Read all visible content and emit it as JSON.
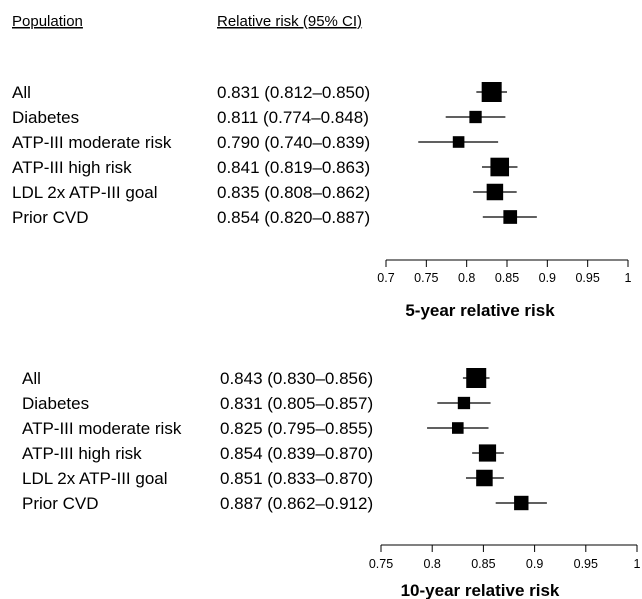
{
  "header": {
    "population": "Population",
    "relative_risk": "Relative risk (95% CI)"
  },
  "chart_data": [
    {
      "type": "forest",
      "xlabel": "5-year relative risk",
      "xlim": [
        0.7,
        1.0
      ],
      "ticks": [
        "0.7",
        "0.75",
        "0.8",
        "0.85",
        "0.9",
        "0.95",
        "1"
      ],
      "rows": [
        {
          "population": "All",
          "estimate": 0.831,
          "lower": 0.812,
          "upper": 0.85,
          "text": "0.831 (0.812–0.850)",
          "weight": 1.0
        },
        {
          "population": "Diabetes",
          "estimate": 0.811,
          "lower": 0.774,
          "upper": 0.848,
          "text": "0.811 (0.774–0.848)",
          "weight": 0.45
        },
        {
          "population": "ATP-III moderate risk",
          "estimate": 0.79,
          "lower": 0.74,
          "upper": 0.839,
          "text": "0.790 (0.740–0.839)",
          "weight": 0.4
        },
        {
          "population": "ATP-III high risk",
          "estimate": 0.841,
          "lower": 0.819,
          "upper": 0.863,
          "text": "0.841 (0.819–0.863)",
          "weight": 0.9
        },
        {
          "population": "LDL 2x ATP-III goal",
          "estimate": 0.835,
          "lower": 0.808,
          "upper": 0.862,
          "text": "0.835 (0.808–0.862)",
          "weight": 0.75
        },
        {
          "population": "Prior CVD",
          "estimate": 0.854,
          "lower": 0.82,
          "upper": 0.887,
          "text": "0.854 (0.820–0.887)",
          "weight": 0.55
        }
      ]
    },
    {
      "type": "forest",
      "xlabel": "10-year relative risk",
      "xlim": [
        0.75,
        1.0
      ],
      "ticks": [
        "0.75",
        "0.8",
        "0.85",
        "0.9",
        "0.95",
        "1"
      ],
      "rows": [
        {
          "population": "All",
          "estimate": 0.843,
          "lower": 0.83,
          "upper": 0.856,
          "text": "0.843 (0.830–0.856)",
          "weight": 1.0
        },
        {
          "population": "Diabetes",
          "estimate": 0.831,
          "lower": 0.805,
          "upper": 0.857,
          "text": "0.831 (0.805–0.857)",
          "weight": 0.45
        },
        {
          "population": "ATP-III moderate risk",
          "estimate": 0.825,
          "lower": 0.795,
          "upper": 0.855,
          "text": "0.825 (0.795–0.855)",
          "weight": 0.4
        },
        {
          "population": "ATP-III high risk",
          "estimate": 0.854,
          "lower": 0.839,
          "upper": 0.87,
          "text": "0.854 (0.839–0.870)",
          "weight": 0.8
        },
        {
          "population": "LDL 2x ATP-III goal",
          "estimate": 0.851,
          "lower": 0.833,
          "upper": 0.87,
          "text": "0.851 (0.833–0.870)",
          "weight": 0.75
        },
        {
          "population": "Prior CVD",
          "estimate": 0.887,
          "lower": 0.862,
          "upper": 0.912,
          "text": "0.887 (0.862–0.912)",
          "weight": 0.6
        }
      ]
    }
  ]
}
